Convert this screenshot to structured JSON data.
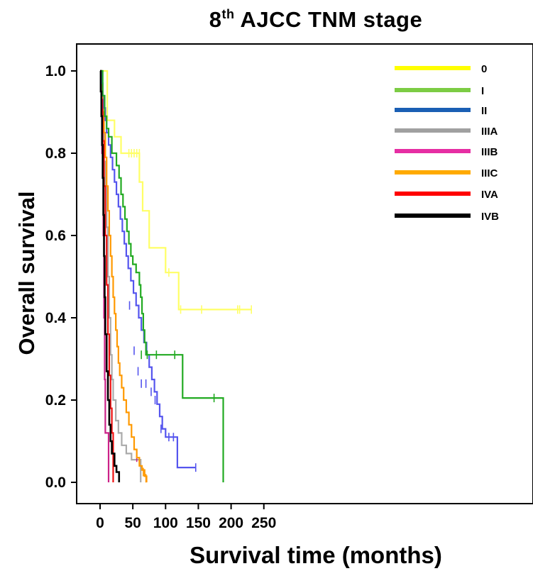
{
  "chart_data": {
    "type": "line",
    "subtype": "kaplan-meier",
    "title_main": "8",
    "title_sup": "th",
    "title_rest": " AJCC TNM stage",
    "xlabel": "Survival time (months)",
    "ylabel": "Overall survival",
    "xlim": [
      -10,
      260
    ],
    "ylim": [
      -0.045,
      1.07
    ],
    "xticks": [
      0,
      50,
      100,
      150,
      200,
      250
    ],
    "yticks": [
      0.0,
      0.2,
      0.4,
      0.6,
      0.8,
      1.0
    ],
    "xtick_labels": [
      "0",
      "50",
      "100",
      "150",
      "200",
      "250"
    ],
    "ytick_labels": [
      "0.0",
      "0.2",
      "0.4",
      "0.6",
      "0.8",
      "1.0"
    ],
    "grid": false,
    "legend_position": "top-right",
    "series": [
      {
        "name": "0",
        "color": "#ffff66",
        "legend_color": "#ffff00",
        "steps": [
          [
            0,
            1.0
          ],
          [
            11,
            0.88
          ],
          [
            22,
            0.84
          ],
          [
            32,
            0.8
          ],
          [
            60,
            0.73
          ],
          [
            65,
            0.66
          ],
          [
            75,
            0.57
          ],
          [
            100,
            0.51
          ],
          [
            120,
            0.42
          ],
          [
            231,
            0.42
          ]
        ],
        "censor": [
          [
            44,
            0.8
          ],
          [
            48,
            0.8
          ],
          [
            52,
            0.8
          ],
          [
            56,
            0.8
          ],
          [
            60,
            0.8
          ],
          [
            105,
            0.51
          ],
          [
            123,
            0.42
          ],
          [
            155,
            0.42
          ],
          [
            210,
            0.42
          ],
          [
            213,
            0.42
          ],
          [
            231,
            0.42
          ]
        ]
      },
      {
        "name": "I",
        "color": "#22aa22",
        "legend_color": "#7ccc44",
        "steps": [
          [
            0,
            1.0
          ],
          [
            4,
            0.94
          ],
          [
            7,
            0.89
          ],
          [
            10,
            0.86
          ],
          [
            13,
            0.84
          ],
          [
            18,
            0.8
          ],
          [
            25,
            0.77
          ],
          [
            29,
            0.74
          ],
          [
            32,
            0.7
          ],
          [
            35,
            0.67
          ],
          [
            38,
            0.64
          ],
          [
            41,
            0.61
          ],
          [
            44,
            0.58
          ],
          [
            47,
            0.55
          ],
          [
            50,
            0.53
          ],
          [
            55,
            0.51
          ],
          [
            60,
            0.48
          ],
          [
            62,
            0.45
          ],
          [
            64,
            0.41
          ],
          [
            66,
            0.37
          ],
          [
            68,
            0.34
          ],
          [
            70,
            0.31
          ],
          [
            126,
            0.31
          ],
          [
            126,
            0.205
          ],
          [
            188,
            0.205
          ],
          [
            188,
            0.0
          ]
        ],
        "censor": [
          [
            63,
            0.31
          ],
          [
            72,
            0.31
          ],
          [
            86,
            0.31
          ],
          [
            114,
            0.31
          ],
          [
            174,
            0.205
          ]
        ]
      },
      {
        "name": "II",
        "color": "#5555ee",
        "legend_color": "#1a5fb4",
        "steps": [
          [
            0,
            1.0
          ],
          [
            2,
            0.97
          ],
          [
            4,
            0.94
          ],
          [
            6,
            0.91
          ],
          [
            8,
            0.88
          ],
          [
            10,
            0.85
          ],
          [
            13,
            0.82
          ],
          [
            16,
            0.79
          ],
          [
            19,
            0.76
          ],
          [
            22,
            0.73
          ],
          [
            25,
            0.7
          ],
          [
            28,
            0.67
          ],
          [
            31,
            0.64
          ],
          [
            34,
            0.61
          ],
          [
            37,
            0.58
          ],
          [
            40,
            0.55
          ],
          [
            43,
            0.52
          ],
          [
            47,
            0.49
          ],
          [
            51,
            0.46
          ],
          [
            55,
            0.43
          ],
          [
            59,
            0.4
          ],
          [
            63,
            0.37
          ],
          [
            67,
            0.34
          ],
          [
            71,
            0.31
          ],
          [
            75,
            0.28
          ],
          [
            79,
            0.25
          ],
          [
            83,
            0.22
          ],
          [
            87,
            0.19
          ],
          [
            91,
            0.16
          ],
          [
            95,
            0.13
          ],
          [
            100,
            0.11
          ],
          [
            116,
            0.11
          ],
          [
            118,
            0.036
          ],
          [
            146,
            0.036
          ]
        ],
        "censor": [
          [
            45,
            0.43
          ],
          [
            52,
            0.32
          ],
          [
            58,
            0.27
          ],
          [
            63,
            0.24
          ],
          [
            70,
            0.24
          ],
          [
            78,
            0.22
          ],
          [
            84,
            0.2
          ],
          [
            93,
            0.13
          ],
          [
            105,
            0.11
          ],
          [
            112,
            0.11
          ],
          [
            146,
            0.036
          ]
        ]
      },
      {
        "name": "IIIA",
        "color": "#aaaaaa",
        "legend_color": "#a0a0a0",
        "steps": [
          [
            0,
            1.0
          ],
          [
            2,
            0.92
          ],
          [
            4,
            0.85
          ],
          [
            6,
            0.78
          ],
          [
            8,
            0.72
          ],
          [
            10,
            0.62
          ],
          [
            12,
            0.5
          ],
          [
            14,
            0.4
          ],
          [
            16,
            0.31
          ],
          [
            18,
            0.25
          ],
          [
            20,
            0.2
          ],
          [
            24,
            0.15
          ],
          [
            28,
            0.12
          ],
          [
            33,
            0.09
          ],
          [
            40,
            0.07
          ],
          [
            48,
            0.055
          ],
          [
            62,
            0.055
          ],
          [
            62,
            0.0
          ]
        ],
        "censor": []
      },
      {
        "name": "IIIB",
        "color": "#cc2288",
        "legend_color": "#e62ea3",
        "steps": [
          [
            0,
            1.0
          ],
          [
            3,
            0.8
          ],
          [
            5,
            0.6
          ],
          [
            6,
            0.4
          ],
          [
            7,
            0.25
          ],
          [
            8,
            0.12
          ],
          [
            13,
            0.12
          ],
          [
            13,
            0.0
          ]
        ],
        "censor": [
          [
            56,
            0.06
          ]
        ]
      },
      {
        "name": "IIIC",
        "color": "#ff9900",
        "legend_color": "#ffaa00",
        "steps": [
          [
            0,
            1.0
          ],
          [
            2,
            0.95
          ],
          [
            4,
            0.9
          ],
          [
            6,
            0.85
          ],
          [
            8,
            0.79
          ],
          [
            10,
            0.72
          ],
          [
            12,
            0.66
          ],
          [
            14,
            0.6
          ],
          [
            16,
            0.55
          ],
          [
            18,
            0.5
          ],
          [
            20,
            0.45
          ],
          [
            22,
            0.41
          ],
          [
            24,
            0.37
          ],
          [
            26,
            0.33
          ],
          [
            28,
            0.29
          ],
          [
            30,
            0.26
          ],
          [
            33,
            0.23
          ],
          [
            36,
            0.2
          ],
          [
            40,
            0.17
          ],
          [
            44,
            0.14
          ],
          [
            48,
            0.11
          ],
          [
            52,
            0.08
          ],
          [
            56,
            0.06
          ],
          [
            60,
            0.04
          ],
          [
            64,
            0.03
          ],
          [
            68,
            0.015
          ],
          [
            71,
            0.0
          ]
        ],
        "censor": [
          [
            66,
            0.025
          ],
          [
            70,
            0.01
          ]
        ]
      },
      {
        "name": "IVA",
        "color": "#ee1111",
        "legend_color": "#ff0000",
        "steps": [
          [
            0,
            1.0
          ],
          [
            2,
            0.93
          ],
          [
            4,
            0.83
          ],
          [
            6,
            0.72
          ],
          [
            8,
            0.6
          ],
          [
            10,
            0.48
          ],
          [
            12,
            0.36
          ],
          [
            14,
            0.26
          ],
          [
            16,
            0.18
          ],
          [
            18,
            0.12
          ],
          [
            20,
            0.06
          ],
          [
            20,
            0.0
          ]
        ],
        "censor": []
      },
      {
        "name": "IVB",
        "color": "#000000",
        "legend_color": "#000000",
        "steps": [
          [
            0,
            1.0
          ],
          [
            1,
            0.95
          ],
          [
            2,
            0.89
          ],
          [
            3,
            0.82
          ],
          [
            4,
            0.74
          ],
          [
            5,
            0.65
          ],
          [
            6,
            0.55
          ],
          [
            7,
            0.45
          ],
          [
            8,
            0.36
          ],
          [
            10,
            0.27
          ],
          [
            12,
            0.2
          ],
          [
            14,
            0.14
          ],
          [
            16,
            0.1
          ],
          [
            18,
            0.07
          ],
          [
            22,
            0.04
          ],
          [
            25,
            0.025
          ],
          [
            29,
            0.025
          ],
          [
            29,
            0.0
          ]
        ],
        "censor": []
      }
    ]
  }
}
